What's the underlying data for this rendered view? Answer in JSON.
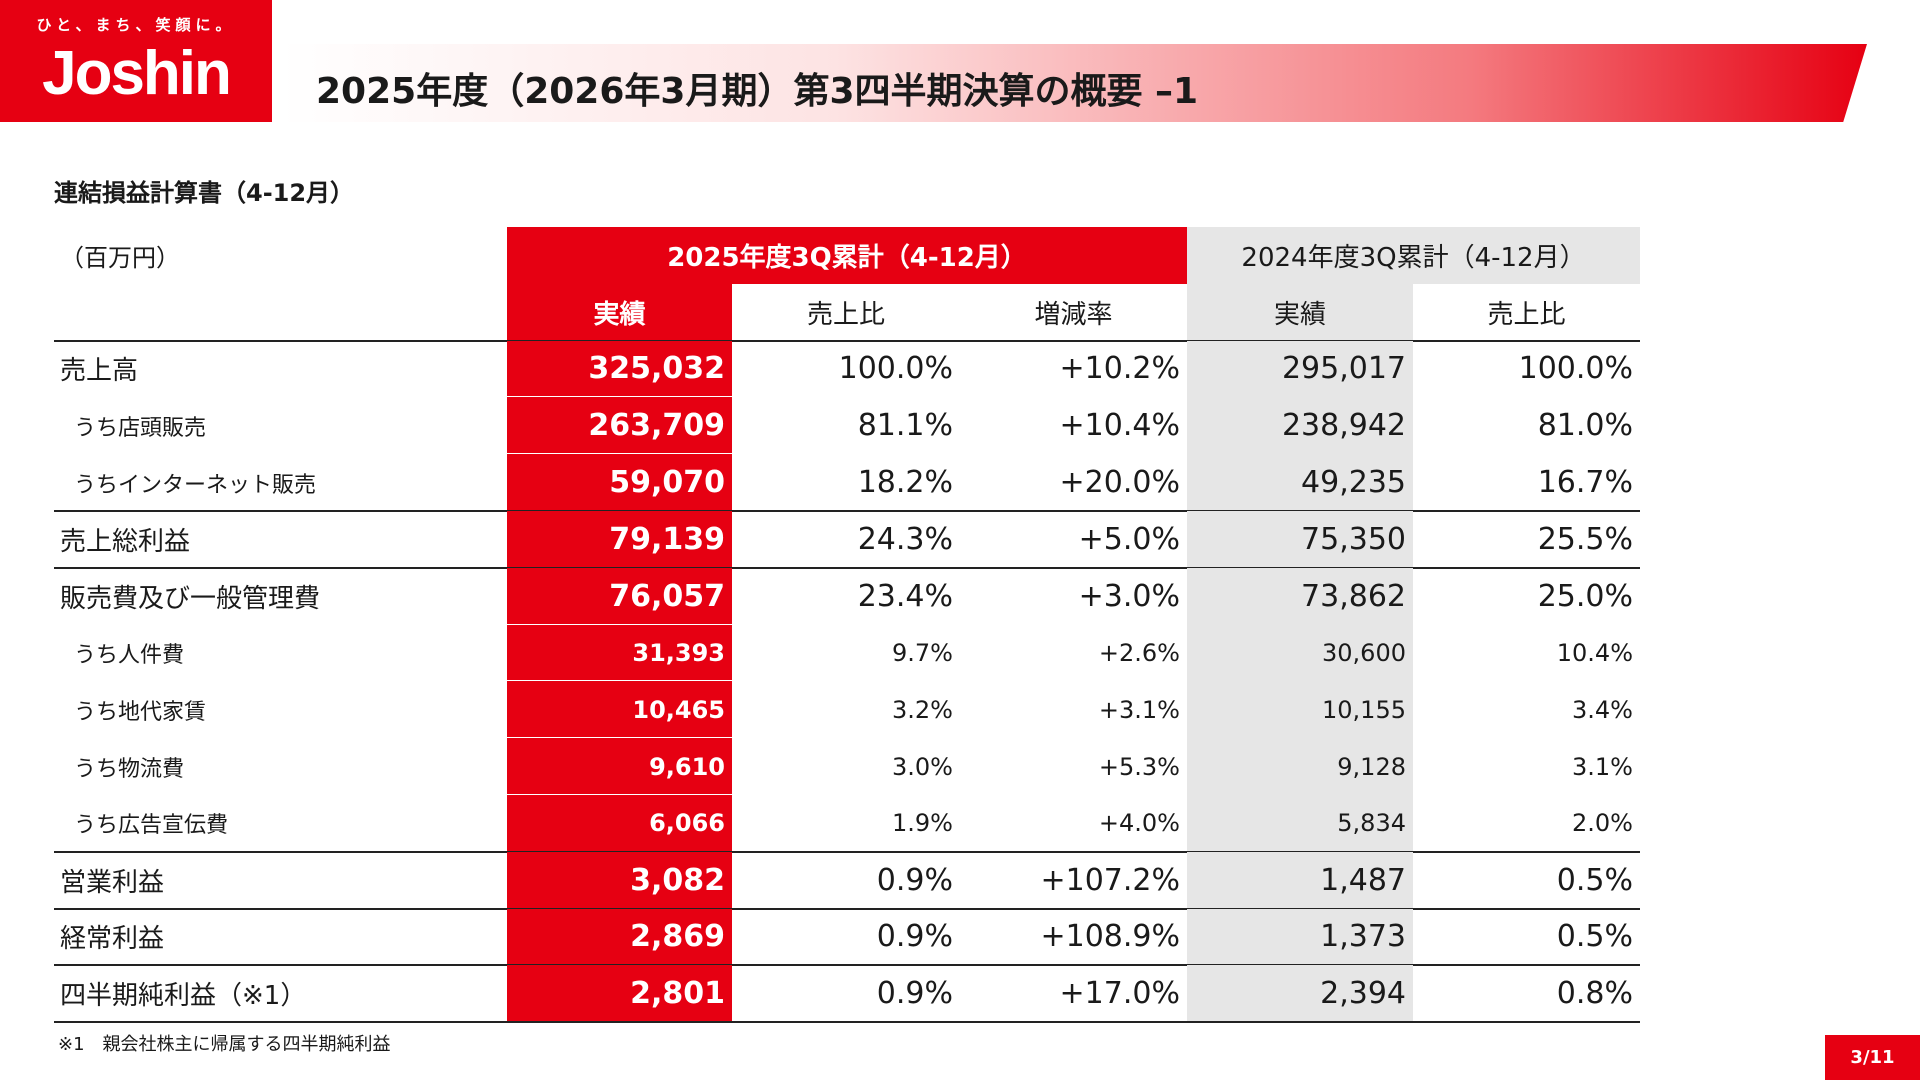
{
  "header": {
    "logo_tagline": "ひと、まち、笑顔に。",
    "logo": "Joshin",
    "title": "2025年度（2026年3月期）第3四半期決算の概要 –1"
  },
  "subtitle": "連結損益計算書（4-12月）",
  "table": {
    "unit": "（百万円）",
    "group_headers": [
      "2025年度3Q累計（4-12月）",
      "2024年度3Q累計（4-12月）"
    ],
    "column_headers": [
      "実績",
      "売上比",
      "増減率",
      "実績",
      "売上比"
    ],
    "rows": [
      [
        "売上高",
        "325,032",
        "100.0%",
        "+10.2%",
        "295,017",
        "100.0%"
      ],
      [
        "うち店頭販売",
        "263,709",
        "81.1%",
        "+10.4%",
        "238,942",
        "81.0%"
      ],
      [
        "うちインターネット販売",
        "59,070",
        "18.2%",
        "+20.0%",
        "49,235",
        "16.7%"
      ],
      [
        "売上総利益",
        "79,139",
        "24.3%",
        "+5.0%",
        "75,350",
        "25.5%"
      ],
      [
        "販売費及び一般管理費",
        "76,057",
        "23.4%",
        "+3.0%",
        "73,862",
        "25.0%"
      ],
      [
        "うち人件費",
        "31,393",
        "9.7%",
        "+2.6%",
        "30,600",
        "10.4%"
      ],
      [
        "うち地代家賃",
        "10,465",
        "3.2%",
        "+3.1%",
        "10,155",
        "3.4%"
      ],
      [
        "うち物流費",
        "9,610",
        "3.0%",
        "+5.3%",
        "9,128",
        "3.1%"
      ],
      [
        "うち広告宣伝費",
        "6,066",
        "1.9%",
        "+4.0%",
        "5,834",
        "2.0%"
      ],
      [
        "営業利益",
        "3,082",
        "0.9%",
        "+107.2%",
        "1,487",
        "0.5%"
      ],
      [
        "経常利益",
        "2,869",
        "0.9%",
        "+108.9%",
        "1,373",
        "0.5%"
      ],
      [
        "四半期純利益（※1）",
        "2,801",
        "0.9%",
        "+17.0%",
        "2,394",
        "0.8%"
      ]
    ]
  },
  "footnote": "※1　親会社株主に帰属する四半期純利益",
  "page_number": "3/11"
}
